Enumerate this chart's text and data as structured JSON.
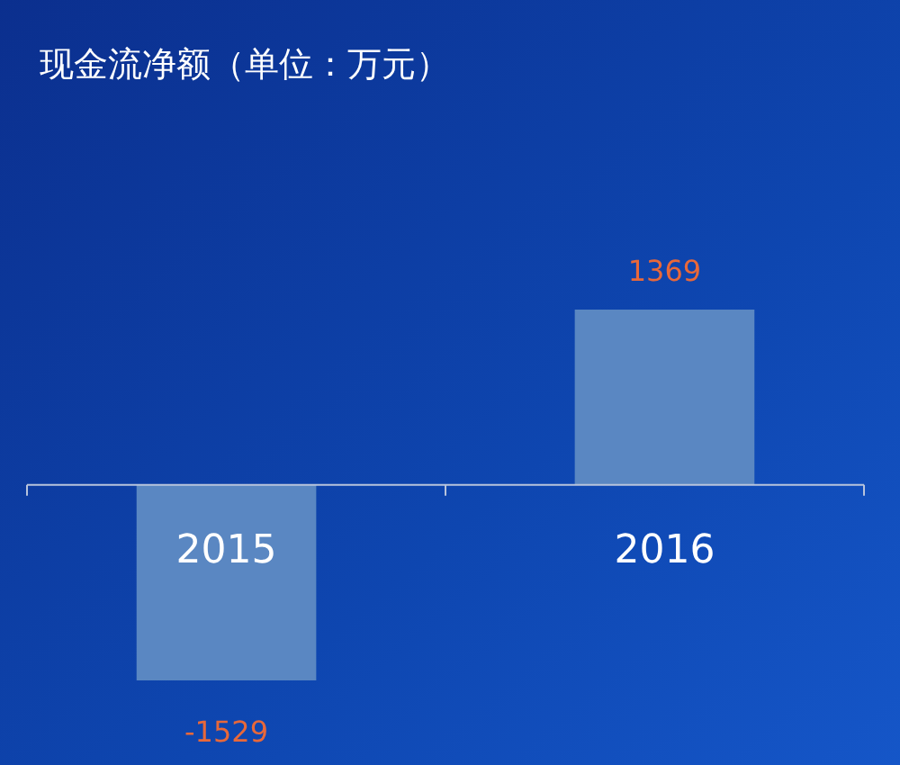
{
  "chart_data": {
    "type": "bar",
    "title": "现金流净额（单位：万元）",
    "categories": [
      "2015",
      "2016"
    ],
    "values": [
      -1529,
      1369
    ],
    "color": "#5a87c2",
    "data_labels": true
  }
}
